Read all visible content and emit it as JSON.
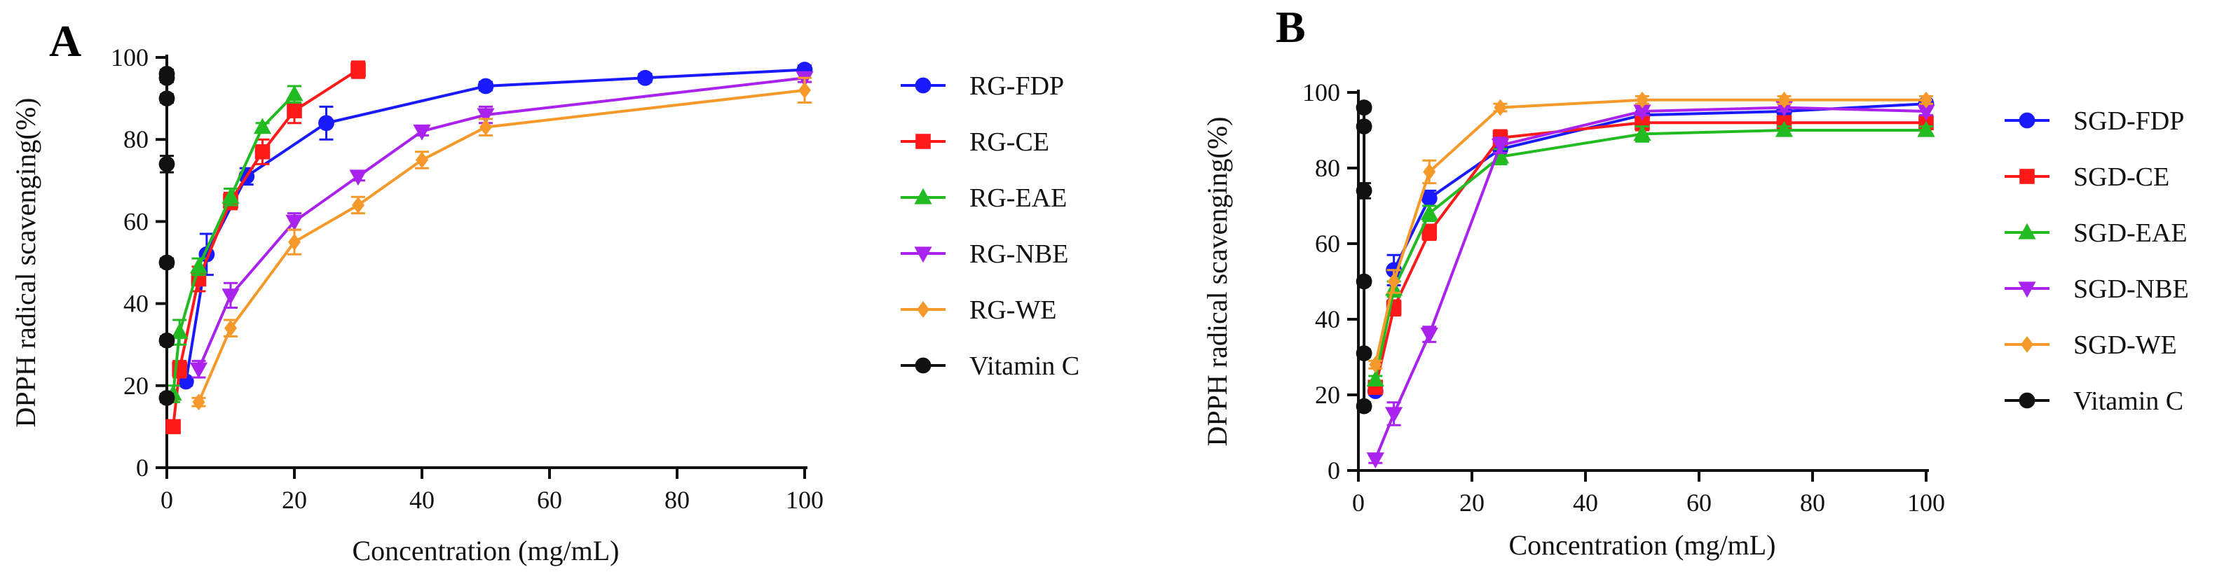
{
  "chart_data": [
    {
      "type": "line",
      "panel_label": "A",
      "xlabel": "Concentration (mg/mL)",
      "ylabel": "DPPH radical scavenging(%)",
      "xlim": [
        0,
        100
      ],
      "ylim": [
        0,
        100
      ],
      "xticks": [
        0,
        20,
        40,
        60,
        80,
        100
      ],
      "yticks": [
        0,
        20,
        40,
        60,
        80,
        100
      ],
      "legend_position": "right",
      "series": [
        {
          "name": "RG-FDP",
          "color": "#1a1aff",
          "marker": "circle",
          "x": [
            3,
            6.25,
            12.5,
            25,
            50,
            75,
            100
          ],
          "y": [
            21,
            52,
            71,
            84,
            93,
            95,
            97
          ],
          "err": [
            1,
            5,
            2,
            4,
            1,
            1,
            1
          ]
        },
        {
          "name": "RG-CE",
          "color": "#ff1a1a",
          "marker": "square",
          "x": [
            1,
            2,
            5,
            10,
            15,
            20,
            30
          ],
          "y": [
            10,
            24,
            46,
            65,
            77,
            87,
            97
          ],
          "err": [
            1,
            2,
            3,
            2,
            3,
            3,
            2
          ]
        },
        {
          "name": "RG-EAE",
          "color": "#22bb22",
          "marker": "triangle-up",
          "x": [
            1,
            2,
            5,
            10,
            15,
            20
          ],
          "y": [
            18,
            33,
            49,
            66,
            83,
            91
          ],
          "err": [
            2,
            3,
            2,
            2,
            1,
            2
          ]
        },
        {
          "name": "RG-NBE",
          "color": "#aa22ee",
          "marker": "triangle-down",
          "x": [
            5,
            10,
            20,
            30,
            40,
            50,
            100
          ],
          "y": [
            24,
            42,
            60,
            71,
            82,
            86,
            95
          ],
          "err": [
            2,
            3,
            2,
            1,
            1,
            2,
            1
          ]
        },
        {
          "name": "RG-WE",
          "color": "#f59a2a",
          "marker": "diamond",
          "x": [
            5,
            10,
            20,
            30,
            40,
            50,
            100
          ],
          "y": [
            16,
            34,
            55,
            64,
            75,
            83,
            92
          ],
          "err": [
            1,
            2,
            3,
            2,
            2,
            2,
            3
          ]
        },
        {
          "name": "Vitamin C",
          "color": "#111111",
          "marker": "circle",
          "x": [
            0,
            0,
            0,
            0,
            0,
            0,
            0
          ],
          "y": [
            17,
            31,
            50,
            74,
            90,
            95,
            96
          ],
          "err": [
            1,
            1,
            1,
            2,
            1,
            1,
            1
          ]
        }
      ]
    },
    {
      "type": "line",
      "panel_label": "B",
      "xlabel": "Concentration (mg/mL)",
      "ylabel": "DPPH radical scavenging(%)",
      "xlim": [
        0,
        100
      ],
      "ylim": [
        0,
        100
      ],
      "xticks": [
        0,
        20,
        40,
        60,
        80,
        100
      ],
      "yticks": [
        0,
        20,
        40,
        60,
        80,
        100
      ],
      "legend_position": "right",
      "series": [
        {
          "name": "SGD-FDP",
          "color": "#1a1aff",
          "marker": "circle",
          "x": [
            3,
            6.25,
            12.5,
            25,
            50,
            75,
            100
          ],
          "y": [
            21,
            53,
            72,
            85,
            94,
            95,
            97
          ],
          "err": [
            1,
            4,
            2,
            3,
            2,
            1,
            1
          ]
        },
        {
          "name": "SGD-CE",
          "color": "#ff1a1a",
          "marker": "square",
          "x": [
            3,
            6.25,
            12.5,
            25,
            50,
            75,
            100
          ],
          "y": [
            22,
            43,
            63,
            88,
            92,
            92,
            92
          ],
          "err": [
            1,
            2,
            2,
            2,
            2,
            1,
            1
          ]
        },
        {
          "name": "SGD-EAE",
          "color": "#22bb22",
          "marker": "triangle-up",
          "x": [
            3,
            6.25,
            12.5,
            25,
            50,
            75,
            100
          ],
          "y": [
            24,
            48,
            68,
            83,
            89,
            90,
            90
          ],
          "err": [
            1,
            2,
            2,
            2,
            2,
            1,
            1
          ]
        },
        {
          "name": "SGD-NBE",
          "color": "#aa22ee",
          "marker": "triangle-down",
          "x": [
            3,
            6.25,
            12.5,
            25,
            50,
            75,
            100
          ],
          "y": [
            3,
            15,
            36,
            86,
            95,
            96,
            95
          ],
          "err": [
            1,
            3,
            2,
            2,
            1,
            1,
            1
          ]
        },
        {
          "name": "SGD-WE",
          "color": "#f59a2a",
          "marker": "diamond",
          "x": [
            3,
            6.25,
            12.5,
            25,
            50,
            75,
            100
          ],
          "y": [
            28,
            50,
            79,
            96,
            98,
            98,
            98
          ],
          "err": [
            1,
            3,
            3,
            1,
            1,
            1,
            1
          ]
        },
        {
          "name": "Vitamin C",
          "color": "#111111",
          "marker": "circle",
          "x": [
            1,
            1,
            1,
            1,
            1,
            1,
            1
          ],
          "y": [
            17,
            31,
            50,
            74,
            91,
            96,
            96
          ],
          "err": [
            1,
            1,
            1,
            2,
            1,
            1,
            1
          ]
        }
      ]
    }
  ]
}
